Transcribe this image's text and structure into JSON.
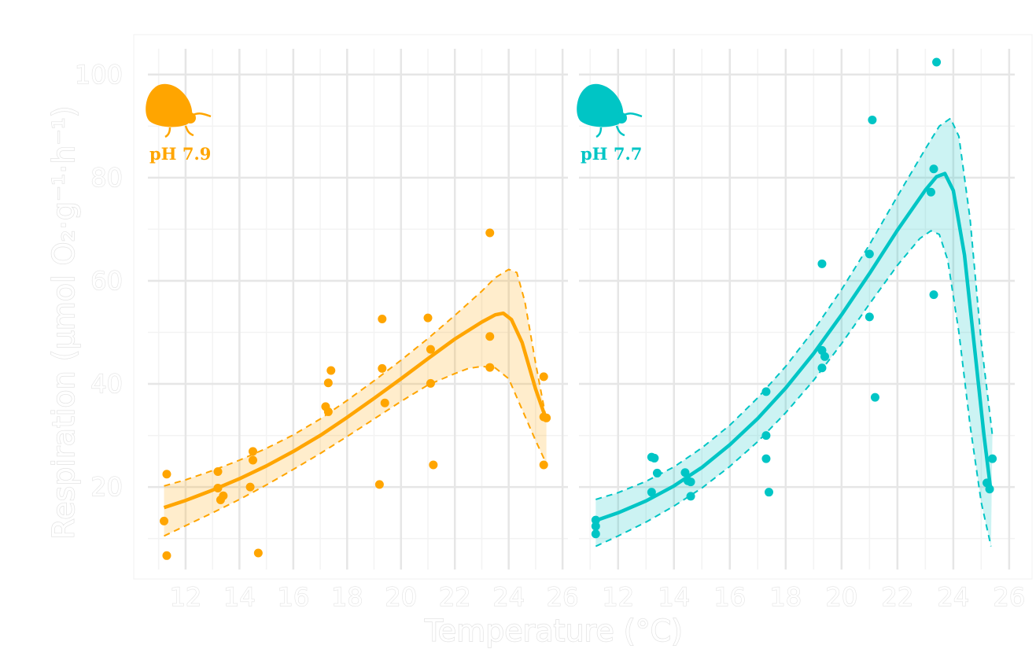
{
  "chart_data": {
    "type": "scatter",
    "xlabel": "Temperature (°C)",
    "ylabel": "Respiration (µmol O₂·g⁻¹·h⁻¹)",
    "xlim": [
      10.6,
      26.2
    ],
    "ylim": [
      4,
      105
    ],
    "x_ticks": [
      12,
      14,
      16,
      18,
      20,
      22,
      24,
      26
    ],
    "y_ticks": [
      20,
      40,
      60,
      80,
      100
    ],
    "grid": true,
    "panels": [
      {
        "label": "pH 7.9",
        "color": "#ffa500",
        "points": [
          [
            11.2,
            13.4
          ],
          [
            11.3,
            22.5
          ],
          [
            11.3,
            6.7
          ],
          [
            13.2,
            23.0
          ],
          [
            13.2,
            19.8
          ],
          [
            13.3,
            17.5
          ],
          [
            13.4,
            18.3
          ],
          [
            14.5,
            26.9
          ],
          [
            14.5,
            25.2
          ],
          [
            14.4,
            20.0
          ],
          [
            14.7,
            7.2
          ],
          [
            17.2,
            35.6
          ],
          [
            17.3,
            34.6
          ],
          [
            17.3,
            40.2
          ],
          [
            17.4,
            42.6
          ],
          [
            19.3,
            52.6
          ],
          [
            19.3,
            43.0
          ],
          [
            19.4,
            36.3
          ],
          [
            19.2,
            20.5
          ],
          [
            21.0,
            52.8
          ],
          [
            21.1,
            46.7
          ],
          [
            21.1,
            40.1
          ],
          [
            21.2,
            24.3
          ],
          [
            23.3,
            69.3
          ],
          [
            23.3,
            49.2
          ],
          [
            23.3,
            43.2
          ],
          [
            25.3,
            41.4
          ],
          [
            25.3,
            33.6
          ],
          [
            25.4,
            33.4
          ],
          [
            25.3,
            24.3
          ]
        ],
        "fit": [
          [
            11.2,
            16.0
          ],
          [
            12.0,
            17.4
          ],
          [
            13.0,
            19.4
          ],
          [
            14.0,
            21.6
          ],
          [
            15.0,
            24.1
          ],
          [
            16.0,
            26.9
          ],
          [
            17.0,
            30.0
          ],
          [
            18.0,
            33.5
          ],
          [
            19.0,
            37.2
          ],
          [
            20.0,
            41.0
          ],
          [
            21.0,
            44.9
          ],
          [
            22.0,
            48.7
          ],
          [
            23.0,
            52.0
          ],
          [
            23.5,
            53.4
          ],
          [
            23.8,
            53.7
          ],
          [
            24.1,
            52.5
          ],
          [
            24.5,
            48.0
          ],
          [
            25.0,
            39.0
          ],
          [
            25.4,
            33.0
          ]
        ],
        "ci_upper": [
          [
            11.2,
            20.2
          ],
          [
            12.0,
            21.4
          ],
          [
            13.0,
            23.2
          ],
          [
            14.0,
            25.2
          ],
          [
            15.0,
            27.5
          ],
          [
            16.0,
            30.1
          ],
          [
            17.0,
            33.2
          ],
          [
            18.0,
            36.8
          ],
          [
            19.0,
            40.6
          ],
          [
            20.0,
            44.6
          ],
          [
            21.0,
            48.8
          ],
          [
            22.0,
            53.3
          ],
          [
            23.0,
            58.0
          ],
          [
            23.5,
            60.6
          ],
          [
            24.0,
            62.2
          ],
          [
            24.3,
            61.6
          ],
          [
            24.6,
            56.0
          ],
          [
            25.0,
            44.0
          ],
          [
            25.4,
            33.0
          ]
        ],
        "ci_lower": [
          [
            11.2,
            10.5
          ],
          [
            12.0,
            12.5
          ],
          [
            13.0,
            15.0
          ],
          [
            14.0,
            17.6
          ],
          [
            15.0,
            20.4
          ],
          [
            16.0,
            23.4
          ],
          [
            17.0,
            26.5
          ],
          [
            18.0,
            29.8
          ],
          [
            19.0,
            33.2
          ],
          [
            20.0,
            36.6
          ],
          [
            21.0,
            39.8
          ],
          [
            22.0,
            42.0
          ],
          [
            22.5,
            43.0
          ],
          [
            23.0,
            43.4
          ],
          [
            23.5,
            43.1
          ],
          [
            24.0,
            41.0
          ],
          [
            24.5,
            35.0
          ],
          [
            25.0,
            29.0
          ],
          [
            25.4,
            24.5
          ]
        ]
      },
      {
        "label": "pH 7.7",
        "color": "#00c5c5",
        "points": [
          [
            11.2,
            13.6
          ],
          [
            11.2,
            12.4
          ],
          [
            11.2,
            10.9
          ],
          [
            13.2,
            25.8
          ],
          [
            13.3,
            25.6
          ],
          [
            13.4,
            22.7
          ],
          [
            13.2,
            19.0
          ],
          [
            14.4,
            22.8
          ],
          [
            14.5,
            21.2
          ],
          [
            14.6,
            21.0
          ],
          [
            14.6,
            18.2
          ],
          [
            17.3,
            38.5
          ],
          [
            17.3,
            30.0
          ],
          [
            17.3,
            25.5
          ],
          [
            17.4,
            19.0
          ],
          [
            19.3,
            63.3
          ],
          [
            19.3,
            46.5
          ],
          [
            19.4,
            45.3
          ],
          [
            19.3,
            43.1
          ],
          [
            21.1,
            91.2
          ],
          [
            21.0,
            65.2
          ],
          [
            21.0,
            53.0
          ],
          [
            21.2,
            37.4
          ],
          [
            23.4,
            102.4
          ],
          [
            23.3,
            81.7
          ],
          [
            23.2,
            77.2
          ],
          [
            23.3,
            57.3
          ],
          [
            25.3,
            19.6
          ],
          [
            25.4,
            25.5
          ],
          [
            25.2,
            20.8
          ]
        ],
        "fit": [
          [
            11.2,
            13.5
          ],
          [
            12.0,
            15.0
          ],
          [
            13.0,
            17.3
          ],
          [
            14.0,
            20.2
          ],
          [
            15.0,
            23.8
          ],
          [
            16.0,
            28.2
          ],
          [
            17.0,
            33.3
          ],
          [
            18.0,
            39.2
          ],
          [
            19.0,
            45.9
          ],
          [
            20.0,
            53.4
          ],
          [
            21.0,
            61.4
          ],
          [
            22.0,
            69.8
          ],
          [
            23.0,
            77.6
          ],
          [
            23.4,
            80.2
          ],
          [
            23.7,
            80.8
          ],
          [
            24.0,
            77.5
          ],
          [
            24.4,
            65.0
          ],
          [
            24.8,
            45.0
          ],
          [
            25.1,
            30.0
          ],
          [
            25.35,
            19.0
          ]
        ],
        "ci_upper": [
          [
            11.2,
            17.6
          ],
          [
            12.0,
            18.9
          ],
          [
            13.0,
            21.1
          ],
          [
            14.0,
            23.9
          ],
          [
            15.0,
            27.6
          ],
          [
            16.0,
            32.0
          ],
          [
            17.0,
            37.3
          ],
          [
            18.0,
            43.4
          ],
          [
            19.0,
            50.4
          ],
          [
            20.0,
            58.3
          ],
          [
            21.0,
            67.0
          ],
          [
            22.0,
            76.4
          ],
          [
            23.0,
            85.6
          ],
          [
            23.5,
            90.0
          ],
          [
            23.9,
            91.5
          ],
          [
            24.2,
            88.0
          ],
          [
            24.6,
            72.0
          ],
          [
            25.0,
            48.0
          ],
          [
            25.4,
            30.0
          ]
        ],
        "ci_lower": [
          [
            11.2,
            8.5
          ],
          [
            12.0,
            10.5
          ],
          [
            13.0,
            13.2
          ],
          [
            14.0,
            16.3
          ],
          [
            15.0,
            19.8
          ],
          [
            16.0,
            24.0
          ],
          [
            17.0,
            28.8
          ],
          [
            18.0,
            34.4
          ],
          [
            19.0,
            40.7
          ],
          [
            20.0,
            47.8
          ],
          [
            21.0,
            55.5
          ],
          [
            22.0,
            63.0
          ],
          [
            22.8,
            68.2
          ],
          [
            23.2,
            69.7
          ],
          [
            23.5,
            69.0
          ],
          [
            23.8,
            64.0
          ],
          [
            24.2,
            50.0
          ],
          [
            24.6,
            32.0
          ],
          [
            25.0,
            17.0
          ],
          [
            25.35,
            8.5
          ]
        ]
      }
    ]
  }
}
